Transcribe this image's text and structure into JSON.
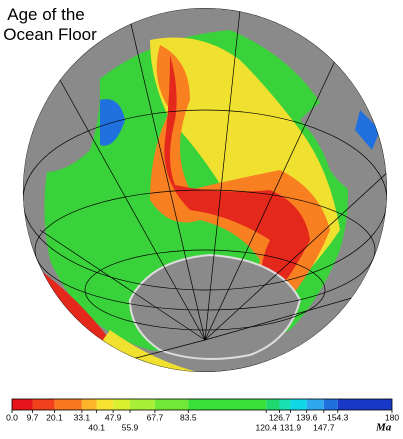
{
  "title": "Age of the Ocean Floor",
  "colorbar": {
    "lim": [
      0,
      180
    ],
    "ticks": [
      {
        "value": 0,
        "label": "0.0"
      },
      9.7,
      20.1,
      33.1,
      40.1,
      47.9,
      55.9,
      67.7,
      83.5,
      120.4,
      126.7,
      131.9,
      139.6,
      147.7,
      154.3,
      180
    ],
    "colors": [
      "#e8141c",
      "#f0401c",
      "#f87820",
      "#fcb428",
      "#f8e430",
      "#d8f030",
      "#a8f038",
      "#70e838",
      "#38e038",
      "#20d870",
      "#18e0b0",
      "#10d8e8",
      "#30a8f0",
      "#2070e0",
      "#1838c8"
    ],
    "unit": "Ma"
  }
}
